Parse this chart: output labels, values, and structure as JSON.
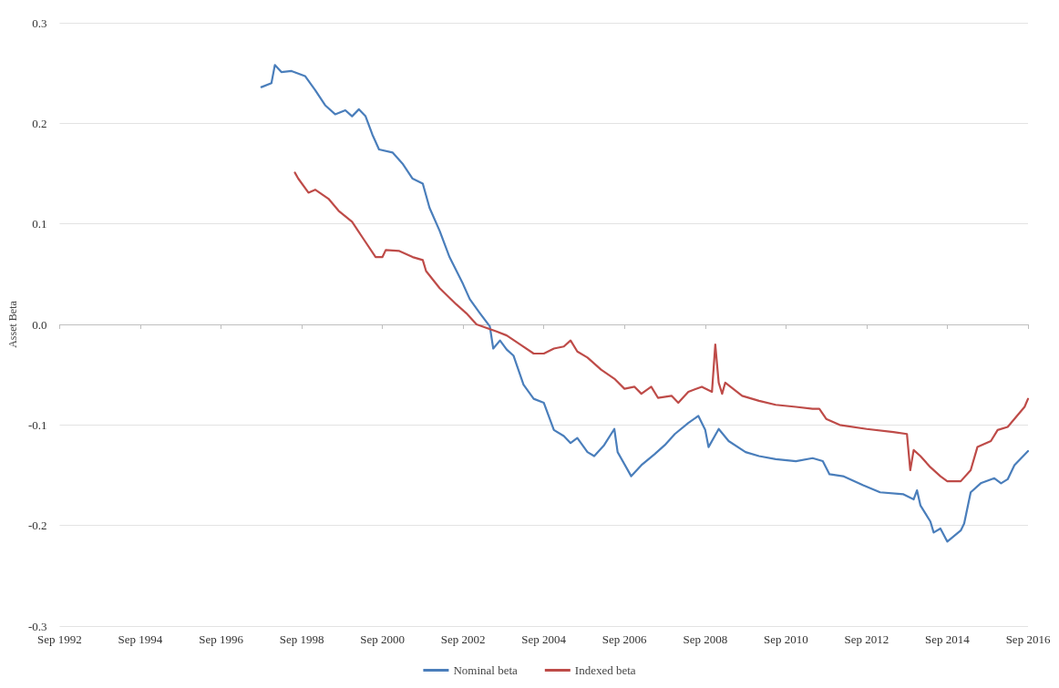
{
  "chart_data": {
    "type": "line",
    "ylabel": "Asset Beta",
    "legend": "bottom",
    "grid": "y",
    "line_style": "solid",
    "marker": "none",
    "xlim": [
      "1992-09",
      "2016-09"
    ],
    "xticks": [
      {
        "value": "1992-09",
        "label": "Sep 1992"
      },
      {
        "value": "1994-09",
        "label": "Sep 1994"
      },
      {
        "value": "1996-09",
        "label": "Sep 1996"
      },
      {
        "value": "1998-09",
        "label": "Sep 1998"
      },
      {
        "value": "2000-09",
        "label": "Sep 2000"
      },
      {
        "value": "2002-09",
        "label": "Sep 2002"
      },
      {
        "value": "2004-09",
        "label": "Sep 2004"
      },
      {
        "value": "2006-09",
        "label": "Sep 2006"
      },
      {
        "value": "2008-09",
        "label": "Sep 2008"
      },
      {
        "value": "2010-09",
        "label": "Sep 2010"
      },
      {
        "value": "2012-09",
        "label": "Sep 2012"
      },
      {
        "value": "2014-09",
        "label": "Sep 2014"
      },
      {
        "value": "2016-09",
        "label": "Sep 2016"
      }
    ],
    "ylim": [
      -0.3,
      0.3
    ],
    "yticks": [
      -0.3,
      -0.2,
      -0.1,
      {
        "value": 0,
        "label": "0.0"
      },
      0.1,
      0.2,
      0.3
    ],
    "series": [
      {
        "name": "Nominal beta",
        "color": "#4a7ebb",
        "x": [
          "1997-09",
          "1997-12",
          "1998-01",
          "1998-03",
          "1998-06",
          "1998-10",
          "1999-01",
          "1999-04",
          "1999-07",
          "1999-10",
          "1999-12",
          "2000-02",
          "2000-04",
          "2000-06",
          "2000-08",
          "2000-12",
          "2001-03",
          "2001-06",
          "2001-09",
          "2001-11",
          "2002-02",
          "2002-05",
          "2002-09",
          "2002-11",
          "2003-02",
          "2003-05",
          "2003-06",
          "2003-08",
          "2003-10",
          "2003-12",
          "2004-03",
          "2004-06",
          "2004-09",
          "2004-12",
          "2005-03",
          "2005-05",
          "2005-07",
          "2005-10",
          "2005-12",
          "2006-03",
          "2006-06",
          "2006-07",
          "2006-11",
          "2007-02",
          "2007-06",
          "2007-09",
          "2007-12",
          "2008-04",
          "2008-07",
          "2008-09",
          "2008-10",
          "2009-01",
          "2009-04",
          "2009-09",
          "2010-01",
          "2010-06",
          "2010-12",
          "2011-05",
          "2011-08",
          "2011-10",
          "2012-02",
          "2012-08",
          "2013-01",
          "2013-08",
          "2013-11",
          "2013-12",
          "2014-01",
          "2014-04",
          "2014-05",
          "2014-07",
          "2014-09",
          "2015-01",
          "2015-02",
          "2015-04",
          "2015-07",
          "2015-11",
          "2016-01",
          "2016-03",
          "2016-05",
          "2016-09"
        ],
        "values": [
          0.236,
          0.24,
          0.258,
          0.251,
          0.252,
          0.247,
          0.233,
          0.218,
          0.209,
          0.213,
          0.207,
          0.214,
          0.207,
          0.189,
          0.174,
          0.171,
          0.16,
          0.145,
          0.14,
          0.116,
          0.093,
          0.067,
          0.04,
          0.025,
          0.011,
          -0.002,
          -0.024,
          -0.016,
          -0.025,
          -0.031,
          -0.06,
          -0.074,
          -0.078,
          -0.105,
          -0.111,
          -0.118,
          -0.113,
          -0.127,
          -0.131,
          -0.12,
          -0.104,
          -0.127,
          -0.151,
          -0.14,
          -0.129,
          -0.12,
          -0.109,
          -0.098,
          -0.091,
          -0.105,
          -0.122,
          -0.104,
          -0.116,
          -0.127,
          -0.131,
          -0.134,
          -0.136,
          -0.133,
          -0.136,
          -0.149,
          -0.151,
          -0.16,
          -0.167,
          -0.169,
          -0.174,
          -0.165,
          -0.18,
          -0.196,
          -0.207,
          -0.203,
          -0.216,
          -0.205,
          -0.198,
          -0.167,
          -0.158,
          -0.153,
          -0.158,
          -0.154,
          -0.14,
          -0.126
        ]
      },
      {
        "name": "Indexed beta",
        "color": "#be4b48",
        "x": [
          "1998-07",
          "1998-08",
          "1998-11",
          "1999-01",
          "1999-05",
          "1999-08",
          "1999-12",
          "2000-03",
          "2000-07",
          "2000-09",
          "2000-10",
          "2001-02",
          "2001-06",
          "2001-09",
          "2001-10",
          "2002-02",
          "2002-07",
          "2002-10",
          "2003-01",
          "2003-07",
          "2003-10",
          "2004-02",
          "2004-06",
          "2004-09",
          "2004-12",
          "2005-03",
          "2005-05",
          "2005-07",
          "2005-10",
          "2006-02",
          "2006-06",
          "2006-09",
          "2006-12",
          "2007-02",
          "2007-05",
          "2007-07",
          "2007-11",
          "2008-01",
          "2008-04",
          "2008-08",
          "2008-11",
          "2008-12",
          "2009-01",
          "2009-02",
          "2009-03",
          "2009-08",
          "2010-01",
          "2010-06",
          "2010-12",
          "2011-05",
          "2011-07",
          "2011-09",
          "2012-01",
          "2012-09",
          "2013-05",
          "2013-09",
          "2013-10",
          "2013-11",
          "2014-01",
          "2014-04",
          "2014-07",
          "2014-09",
          "2015-01",
          "2015-04",
          "2015-06",
          "2015-10",
          "2015-12",
          "2016-03",
          "2016-08",
          "2016-09"
        ],
        "values": [
          0.151,
          0.145,
          0.131,
          0.134,
          0.125,
          0.113,
          0.102,
          0.087,
          0.067,
          0.067,
          0.074,
          0.073,
          0.067,
          0.064,
          0.053,
          0.036,
          0.02,
          0.011,
          0.0,
          -0.007,
          -0.011,
          -0.02,
          -0.029,
          -0.029,
          -0.024,
          -0.022,
          -0.016,
          -0.027,
          -0.033,
          -0.045,
          -0.054,
          -0.064,
          -0.062,
          -0.069,
          -0.062,
          -0.073,
          -0.071,
          -0.078,
          -0.067,
          -0.062,
          -0.067,
          -0.02,
          -0.058,
          -0.069,
          -0.058,
          -0.071,
          -0.076,
          -0.08,
          -0.082,
          -0.084,
          -0.084,
          -0.094,
          -0.1,
          -0.104,
          -0.107,
          -0.109,
          -0.145,
          -0.125,
          -0.131,
          -0.142,
          -0.151,
          -0.156,
          -0.156,
          -0.145,
          -0.122,
          -0.116,
          -0.105,
          -0.102,
          -0.082,
          -0.074
        ]
      }
    ]
  }
}
